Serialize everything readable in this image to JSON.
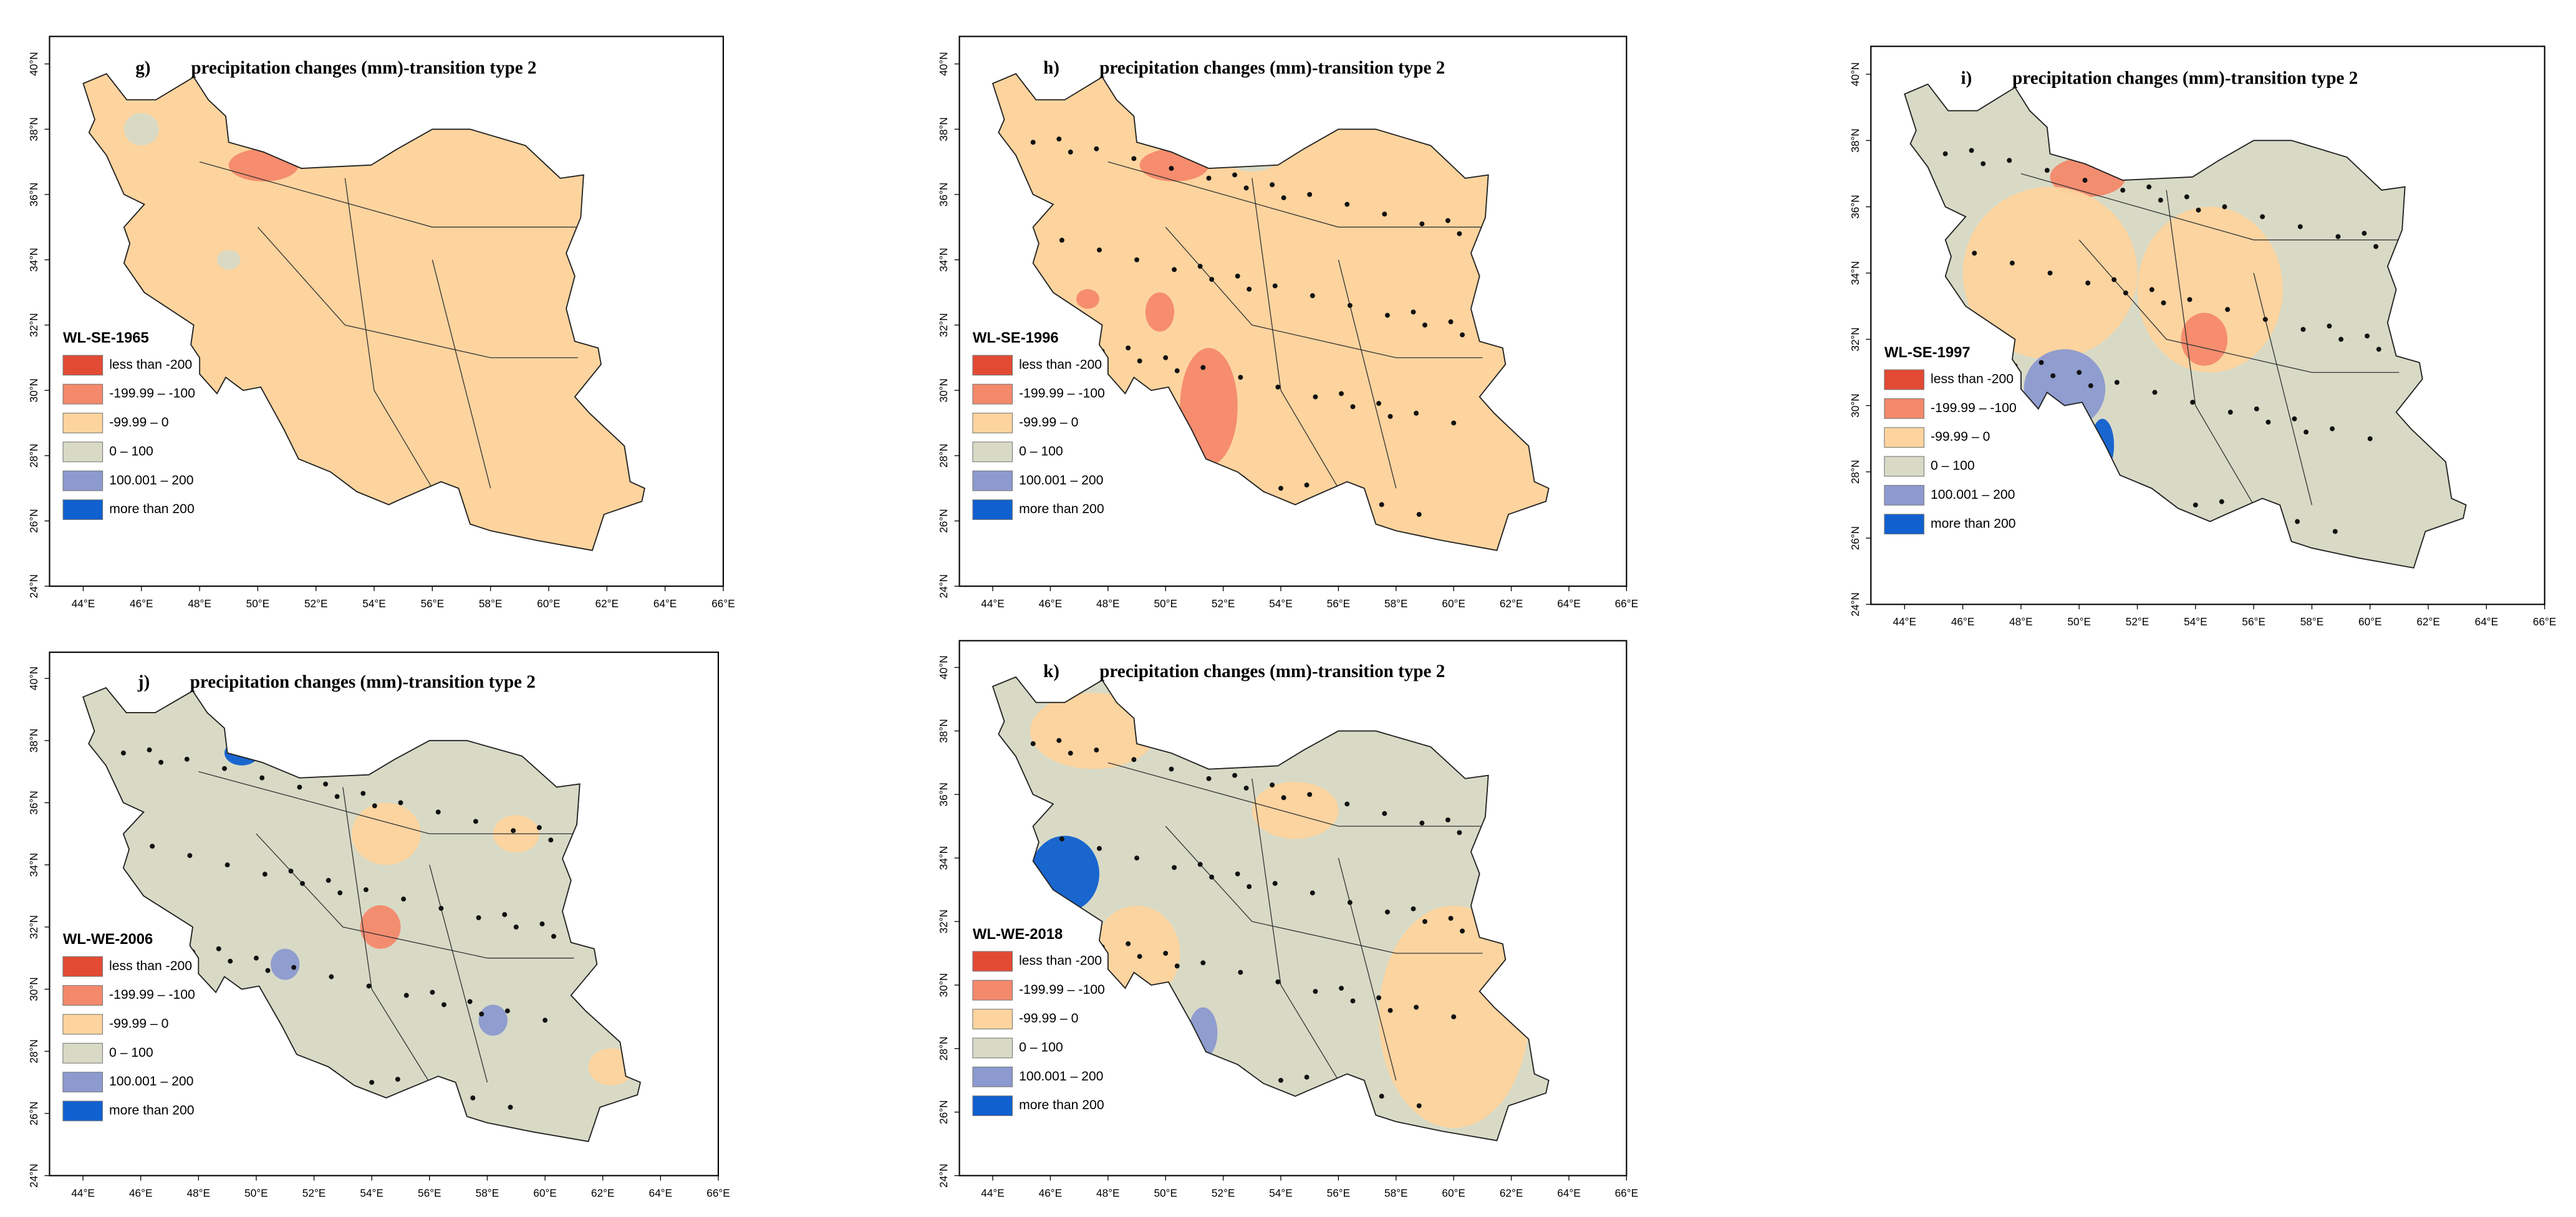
{
  "panels": [
    {
      "letter": "g)",
      "title": "precipitation changes (mm)-transition type 2",
      "period": "WL-SE-1965"
    },
    {
      "letter": "h)",
      "title": "precipitation changes (mm)-transition type 2",
      "period": "WL-SE-1996"
    },
    {
      "letter": "i)",
      "title": "precipitation changes (mm)-transition type 2",
      "period": "WL-SE-1997"
    },
    {
      "letter": "j)",
      "title": "precipitation changes (mm)-transition type 2",
      "period": "WL-WE-2006"
    },
    {
      "letter": "k)",
      "title": "precipitation changes (mm)-transition type 2",
      "period": "WL-WE-2018"
    }
  ],
  "legend": [
    {
      "label": "less than -200",
      "color": "#e34a33"
    },
    {
      "label": "-199.99 – -100",
      "color": "#f4896b"
    },
    {
      "label": "-99.99 – 0",
      "color": "#fdd49e"
    },
    {
      "label": "0 – 100",
      "color": "#d8dac6"
    },
    {
      "label": "100.001 – 200",
      "color": "#8c9ad0"
    },
    {
      "label": "more than 200",
      "color": "#1060d0"
    }
  ],
  "lon_labels": [
    "44°E",
    "46°E",
    "48°E",
    "50°E",
    "52°E",
    "54°E",
    "56°E",
    "58°E",
    "60°E",
    "62°E",
    "64°E",
    "66°E"
  ],
  "lat_labels": [
    "40°N",
    "38°N",
    "36°N",
    "34°N",
    "32°N",
    "30°N",
    "28°N",
    "26°N",
    "24°N"
  ]
}
